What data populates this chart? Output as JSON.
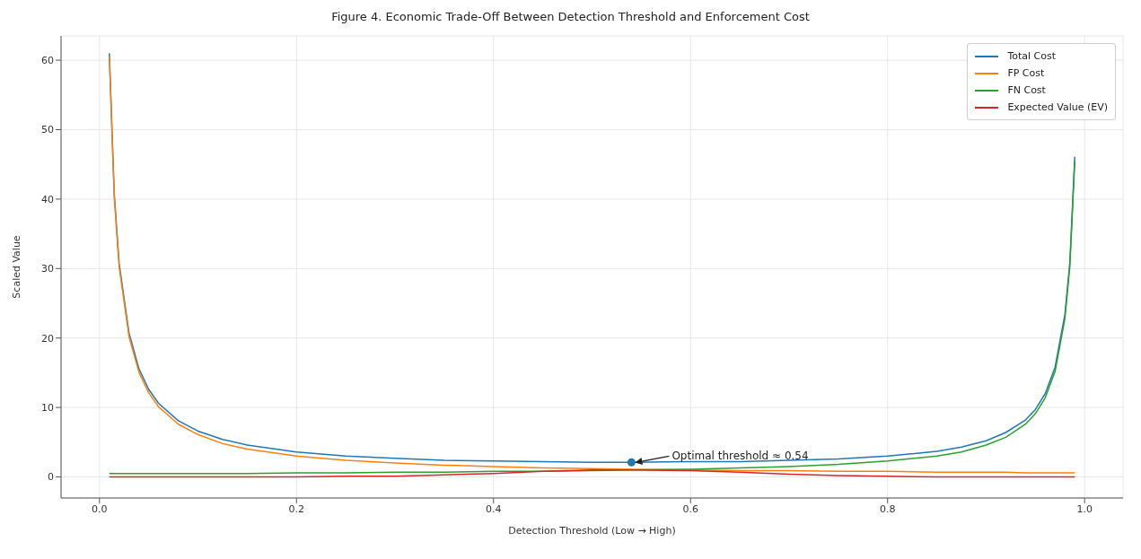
{
  "chart_data": {
    "type": "line",
    "title": "Figure 4. Economic Trade-Off Between Detection Threshold and Enforcement Cost",
    "xlabel": "Detection Threshold (Low → High)",
    "ylabel": "Scaled Value",
    "x": [
      0.01,
      0.015,
      0.02,
      0.03,
      0.04,
      0.05,
      0.06,
      0.08,
      0.1,
      0.125,
      0.15,
      0.2,
      0.25,
      0.3,
      0.35,
      0.4,
      0.45,
      0.5,
      0.54,
      0.6,
      0.65,
      0.7,
      0.75,
      0.8,
      0.85,
      0.875,
      0.9,
      0.92,
      0.94,
      0.95,
      0.96,
      0.97,
      0.98,
      0.985,
      0.99
    ],
    "series": [
      {
        "name": "Total Cost",
        "color": "#1f77b4",
        "values": [
          61.0,
          40.8,
          30.7,
          20.7,
          15.6,
          12.6,
          10.6,
          8.1,
          6.6,
          5.4,
          4.6,
          3.6,
          3.0,
          2.7,
          2.4,
          2.3,
          2.2,
          2.1,
          2.1,
          2.2,
          2.2,
          2.4,
          2.6,
          3.0,
          3.7,
          4.3,
          5.2,
          6.4,
          8.2,
          9.7,
          12.0,
          15.8,
          23.4,
          30.9,
          46.1
        ]
      },
      {
        "name": "FP Cost",
        "color": "#ff7f0e",
        "values": [
          60.5,
          40.3,
          30.2,
          20.2,
          15.1,
          12.1,
          10.1,
          7.6,
          6.1,
          4.8,
          4.0,
          3.0,
          2.4,
          2.0,
          1.7,
          1.5,
          1.3,
          1.2,
          1.1,
          1.0,
          0.9,
          0.9,
          0.8,
          0.8,
          0.7,
          0.7,
          0.7,
          0.7,
          0.6,
          0.6,
          0.6,
          0.6,
          0.6,
          0.6,
          0.6
        ]
      },
      {
        "name": "FN Cost",
        "color": "#2ca02c",
        "values": [
          0.5,
          0.5,
          0.5,
          0.5,
          0.5,
          0.5,
          0.5,
          0.5,
          0.5,
          0.5,
          0.5,
          0.6,
          0.6,
          0.7,
          0.7,
          0.8,
          0.8,
          0.9,
          1.0,
          1.1,
          1.3,
          1.5,
          1.8,
          2.3,
          3.0,
          3.6,
          4.6,
          5.7,
          7.6,
          9.1,
          11.4,
          15.2,
          22.8,
          30.3,
          45.5
        ]
      },
      {
        "name": "Expected Value (EV)",
        "color": "#d62728",
        "values": [
          0,
          0,
          0,
          0,
          0,
          0,
          0,
          0,
          0,
          0,
          0,
          0,
          0.1,
          0.1,
          0.3,
          0.5,
          0.8,
          1.0,
          1.0,
          0.9,
          0.7,
          0.4,
          0.2,
          0.1,
          0,
          0,
          0,
          0,
          0,
          0,
          0,
          0,
          0,
          0,
          0
        ]
      },
      {
        "type": "scatter",
        "color": "#1f77b4",
        "marker": "circle",
        "x": [
          0.54
        ],
        "values": [
          2.1
        ]
      }
    ],
    "annotations": [
      {
        "text": "Optimal threshold ≈ 0.54",
        "x": 0.54,
        "y": 2.1
      }
    ],
    "xlim": [
      -0.039,
      1.039
    ],
    "xticks": [
      {
        "value": 0,
        "label": "0.0"
      },
      0.2,
      0.4,
      0.6,
      0.8,
      {
        "value": 1,
        "label": "1.0"
      }
    ],
    "ylim": [
      -3.03,
      63.5
    ],
    "yticks": [
      0,
      10,
      20,
      30,
      40,
      50,
      60
    ],
    "grid": true,
    "legend": "top right",
    "marker": "none",
    "line_style": "solid"
  }
}
